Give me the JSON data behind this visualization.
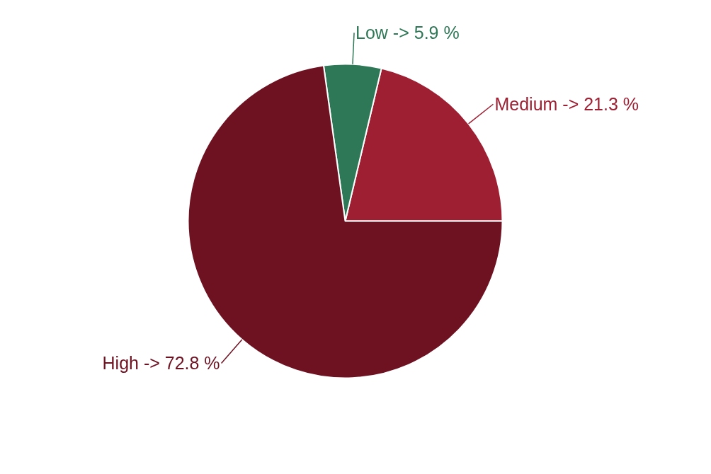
{
  "chart_data": {
    "type": "pie",
    "categories": [
      "Medium",
      "Low",
      "High"
    ],
    "values": [
      21.3,
      5.9,
      72.8
    ],
    "colors": [
      "#9e1f32",
      "#2e7857",
      "#6e1121"
    ],
    "value_labels": [
      "-> 21.3 %",
      "-> 5.9 %",
      "-> 72.8 %"
    ]
  }
}
